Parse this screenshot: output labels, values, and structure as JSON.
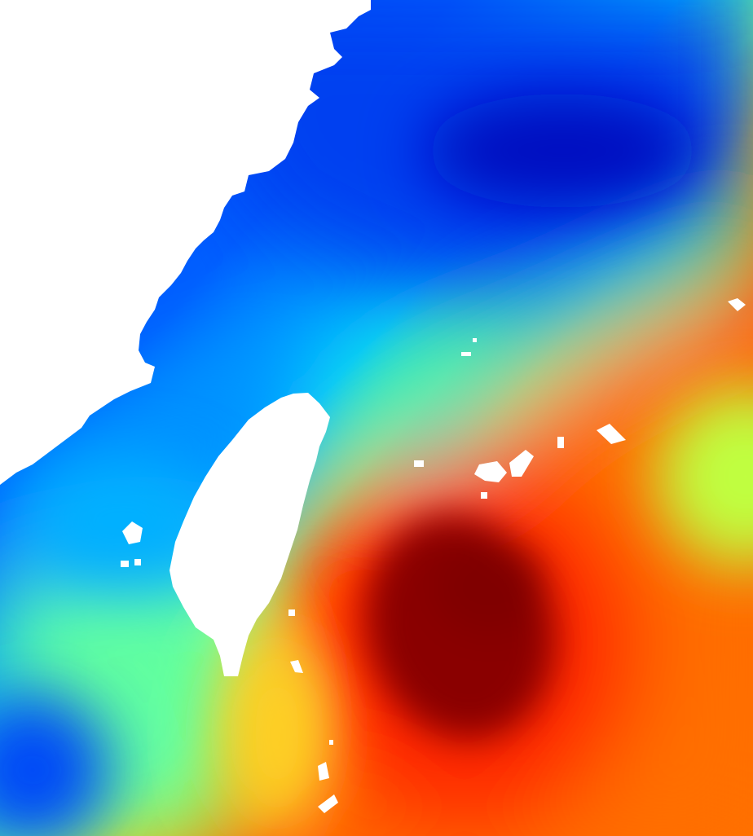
{
  "map": {
    "type": "scalar-field-heatmap",
    "colormap": "jet",
    "land_color": "#ffffff",
    "legend": null,
    "labels": [],
    "features": {
      "landmasses": [
        "mainland-coast",
        "taiwan-island",
        "ryukyu-islands",
        "penghu-islands",
        "luzon-strait-islands"
      ],
      "field_extremes": [
        "low-north-east",
        "low-south-west",
        "high-south-east",
        "moderate-east"
      ]
    }
  }
}
